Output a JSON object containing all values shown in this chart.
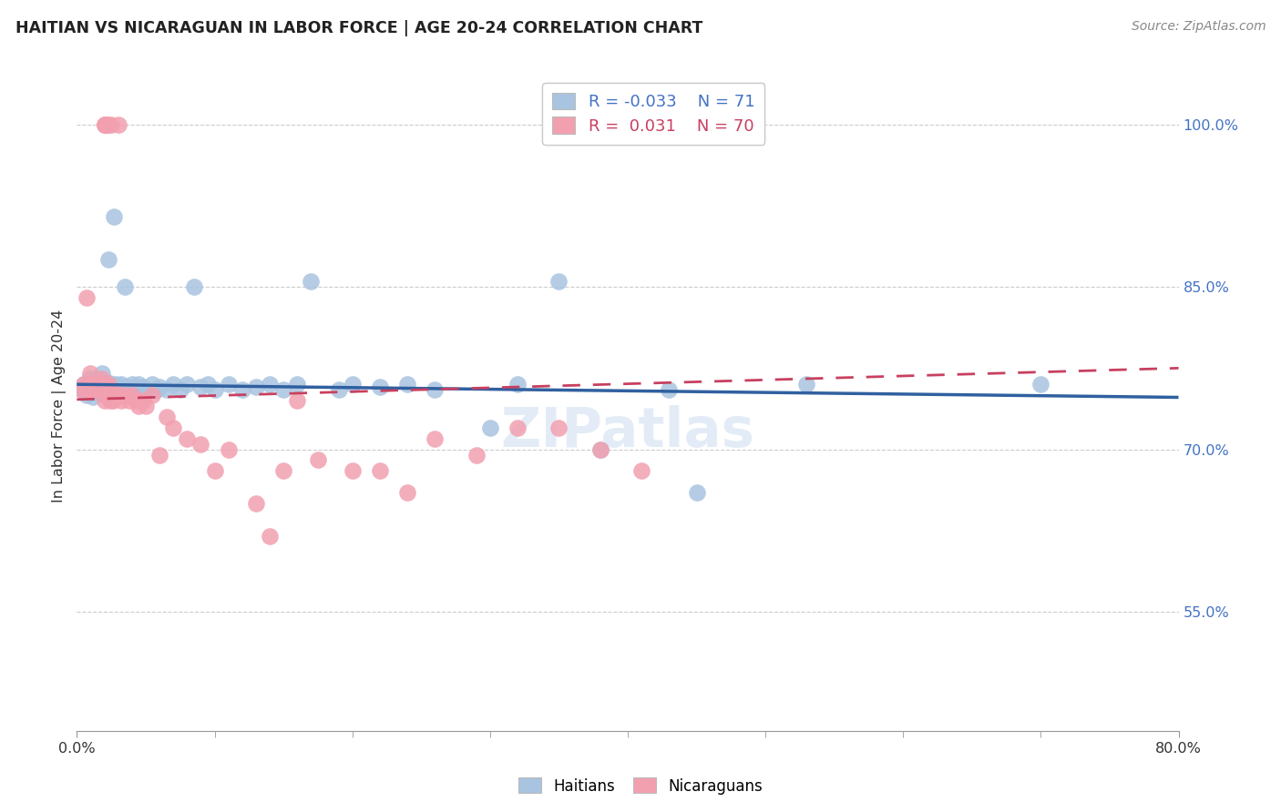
{
  "title": "HAITIAN VS NICARAGUAN IN LABOR FORCE | AGE 20-24 CORRELATION CHART",
  "source": "Source: ZipAtlas.com",
  "ylabel": "In Labor Force | Age 20-24",
  "xlim": [
    0.0,
    0.8
  ],
  "ylim": [
    0.44,
    1.04
  ],
  "yticks": [
    0.55,
    0.7,
    0.85,
    1.0
  ],
  "ytick_labels": [
    "55.0%",
    "70.0%",
    "85.0%",
    "100.0%"
  ],
  "xtick_major": [
    0.0,
    0.8
  ],
  "xtick_major_labels": [
    "0.0%",
    "80.0%"
  ],
  "xtick_minor": [
    0.1,
    0.2,
    0.3,
    0.4,
    0.5,
    0.6,
    0.7
  ],
  "legend_r_blue": "-0.033",
  "legend_n_blue": "71",
  "legend_r_pink": "0.031",
  "legend_n_pink": "70",
  "blue_color": "#a8c4e0",
  "pink_color": "#f2a0b0",
  "trend_blue_color": "#3060a0",
  "trend_pink_color": "#c84060",
  "trend_pink_dashed": true,
  "watermark": "ZIPatlas",
  "watermark_color": "#ccddf0",
  "grid_h_color": "#cccccc",
  "grid_h_style": "--",
  "blue_x": [
    0.003,
    0.005,
    0.006,
    0.007,
    0.008,
    0.009,
    0.01,
    0.01,
    0.011,
    0.012,
    0.013,
    0.014,
    0.015,
    0.015,
    0.016,
    0.017,
    0.018,
    0.018,
    0.019,
    0.02,
    0.021,
    0.022,
    0.022,
    0.023,
    0.024,
    0.025,
    0.026,
    0.027,
    0.028,
    0.03,
    0.032,
    0.033,
    0.035,
    0.036,
    0.038,
    0.04,
    0.042,
    0.045,
    0.048,
    0.05,
    0.055,
    0.058,
    0.06,
    0.065,
    0.07,
    0.075,
    0.08,
    0.085,
    0.09,
    0.095,
    0.1,
    0.11,
    0.12,
    0.13,
    0.14,
    0.15,
    0.16,
    0.17,
    0.19,
    0.2,
    0.22,
    0.24,
    0.26,
    0.3,
    0.32,
    0.35,
    0.38,
    0.43,
    0.45,
    0.53,
    0.7
  ],
  "blue_y": [
    0.755,
    0.76,
    0.755,
    0.75,
    0.758,
    0.765,
    0.752,
    0.76,
    0.755,
    0.748,
    0.762,
    0.758,
    0.755,
    0.765,
    0.752,
    0.76,
    0.758,
    0.77,
    0.755,
    0.758,
    0.76,
    0.755,
    0.762,
    0.875,
    0.758,
    0.76,
    0.755,
    0.915,
    0.76,
    0.758,
    0.76,
    0.755,
    0.85,
    0.758,
    0.755,
    0.76,
    0.755,
    0.76,
    0.758,
    0.755,
    0.76,
    0.755,
    0.758,
    0.755,
    0.76,
    0.755,
    0.76,
    0.85,
    0.758,
    0.76,
    0.755,
    0.76,
    0.755,
    0.758,
    0.76,
    0.755,
    0.76,
    0.855,
    0.755,
    0.76,
    0.758,
    0.76,
    0.755,
    0.72,
    0.76,
    0.855,
    0.7,
    0.755,
    0.66,
    0.76,
    0.76
  ],
  "pink_x": [
    0.003,
    0.005,
    0.007,
    0.008,
    0.008,
    0.009,
    0.01,
    0.01,
    0.01,
    0.011,
    0.012,
    0.013,
    0.013,
    0.014,
    0.015,
    0.015,
    0.016,
    0.017,
    0.018,
    0.018,
    0.018,
    0.019,
    0.02,
    0.02,
    0.02,
    0.021,
    0.022,
    0.023,
    0.024,
    0.025,
    0.026,
    0.028,
    0.03,
    0.032,
    0.035,
    0.038,
    0.04,
    0.043,
    0.045,
    0.048,
    0.05,
    0.055,
    0.06,
    0.065,
    0.07,
    0.08,
    0.09,
    0.1,
    0.11,
    0.13,
    0.14,
    0.15,
    0.16,
    0.175,
    0.2,
    0.22,
    0.24,
    0.26,
    0.29,
    0.32,
    0.35,
    0.38,
    0.41,
    0.02,
    0.02,
    0.02,
    0.022,
    0.022,
    0.025,
    0.03
  ],
  "pink_y": [
    0.755,
    0.76,
    0.84,
    0.755,
    0.76,
    0.755,
    0.76,
    0.755,
    0.77,
    0.76,
    0.755,
    0.76,
    0.755,
    0.76,
    0.755,
    0.76,
    0.755,
    0.76,
    0.755,
    0.76,
    0.765,
    0.755,
    0.745,
    0.755,
    0.76,
    0.75,
    0.755,
    0.76,
    0.745,
    0.755,
    0.745,
    0.75,
    0.75,
    0.745,
    0.75,
    0.745,
    0.75,
    0.745,
    0.74,
    0.745,
    0.74,
    0.75,
    0.695,
    0.73,
    0.72,
    0.71,
    0.705,
    0.68,
    0.7,
    0.65,
    0.62,
    0.68,
    0.745,
    0.69,
    0.68,
    0.68,
    0.66,
    0.71,
    0.695,
    0.72,
    0.72,
    0.7,
    0.68,
    1.0,
    1.0,
    1.0,
    1.0,
    1.0,
    1.0,
    1.0
  ]
}
